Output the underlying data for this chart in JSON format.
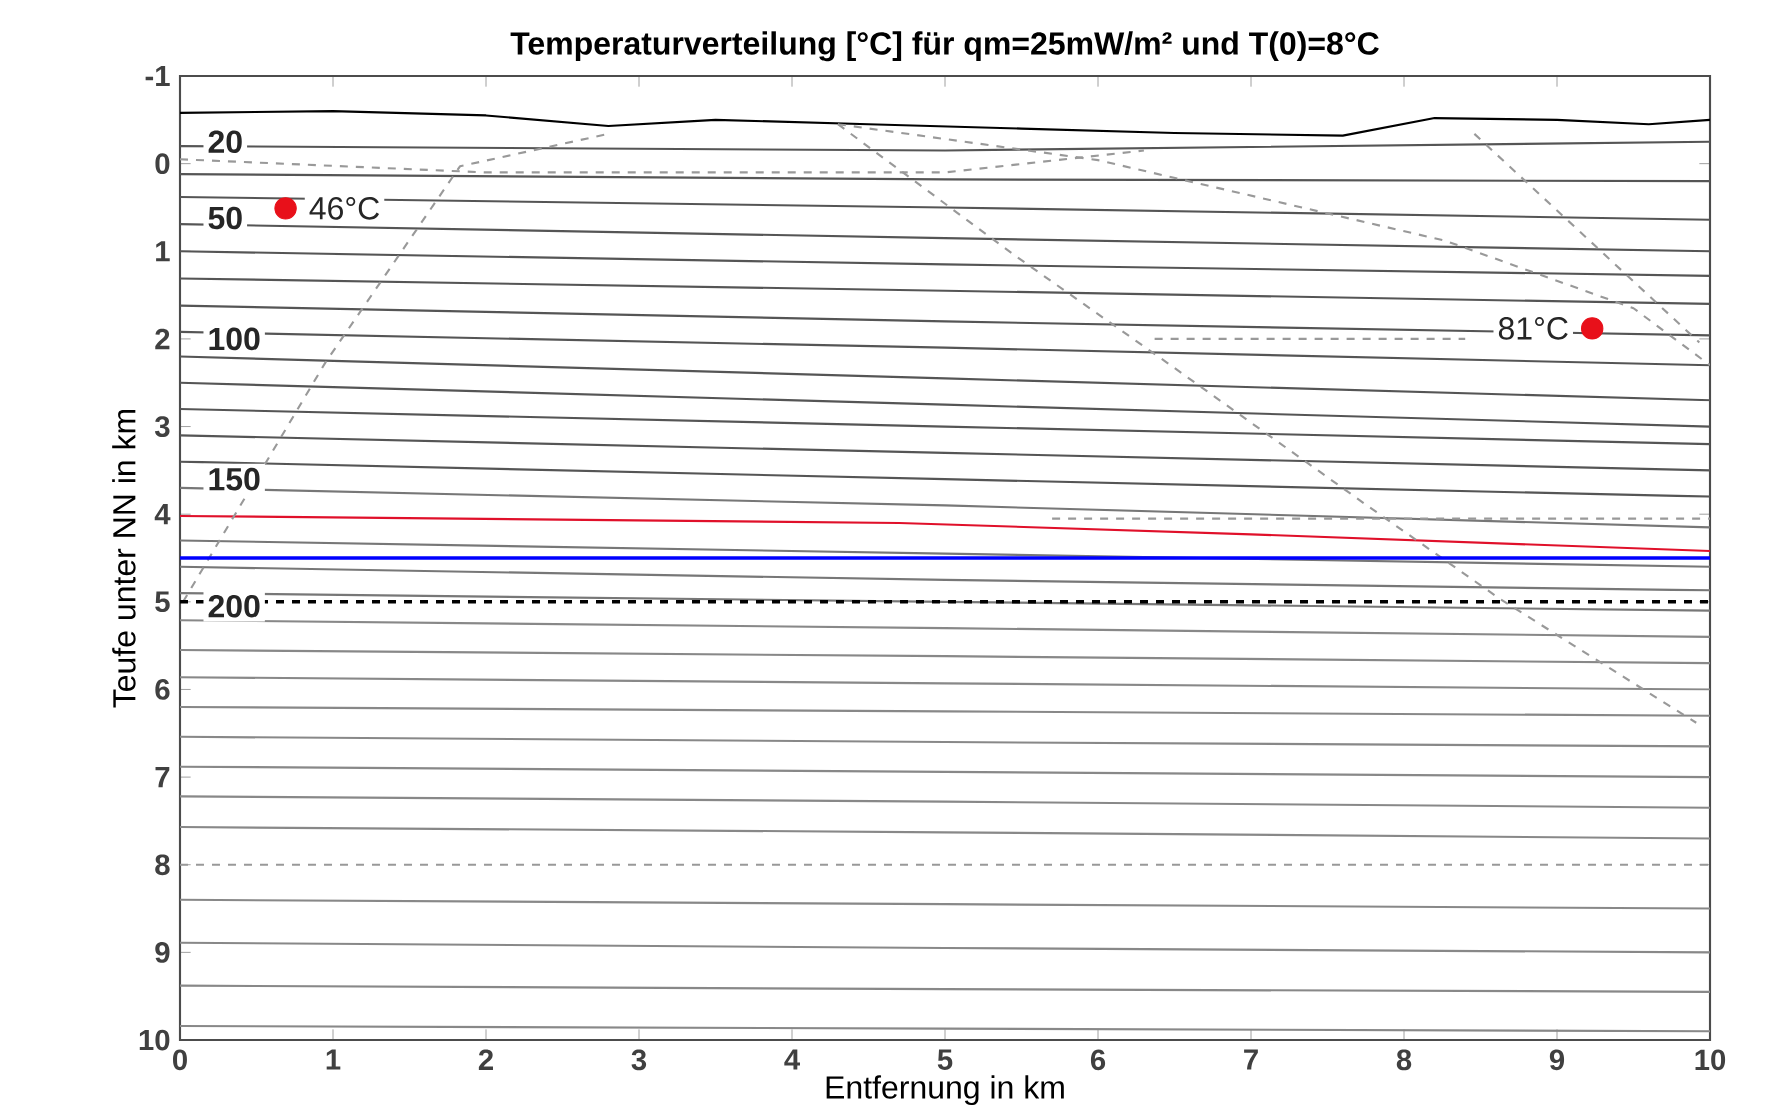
{
  "chart_data": {
    "type": "line",
    "title": "**Temperaturverteilung [°C] für qm=25mW/m² und T(0)=8°C**",
    "xlabel": "Entfernung in km",
    "ylabel": "Teufe unter NN in km",
    "xlim": [
      0,
      10
    ],
    "ylim": [
      10,
      -1
    ],
    "xticks": [
      0,
      1,
      2,
      3,
      4,
      5,
      6,
      7,
      8,
      9,
      10
    ],
    "yticks": [
      -1,
      0,
      1,
      2,
      3,
      4,
      5,
      6,
      7,
      8,
      9,
      10
    ],
    "x": [
      0,
      5,
      10
    ],
    "series": [
      {
        "color": "#000000",
        "x": [
          0,
          1,
          2,
          2.8,
          3.5,
          4.5,
          5.5,
          6.5,
          7.6,
          8.2,
          9,
          9.6,
          10
        ],
        "values": [
          -0.58,
          -0.6,
          -0.55,
          -0.43,
          -0.5,
          -0.45,
          -0.4,
          -0.35,
          -0.32,
          -0.52,
          -0.5,
          -0.45,
          -0.5
        ]
      },
      {
        "color": "#555555",
        "values": [
          -0.2,
          -0.15,
          -0.25
        ]
      },
      {
        "color": "#555555",
        "values": [
          0.12,
          0.18,
          0.2
        ]
      },
      {
        "color": "#555555",
        "values": [
          0.38,
          0.5,
          0.64
        ]
      },
      {
        "color": "#555555",
        "values": [
          0.69,
          0.85,
          1.0
        ]
      },
      {
        "color": "#555555",
        "values": [
          1.0,
          1.15,
          1.28
        ]
      },
      {
        "color": "#555555",
        "values": [
          1.31,
          1.45,
          1.6
        ]
      },
      {
        "color": "#555555",
        "values": [
          1.62,
          1.8,
          1.96
        ]
      },
      {
        "color": "#555555",
        "values": [
          1.92,
          2.1,
          2.3
        ]
      },
      {
        "color": "#555555",
        "values": [
          2.2,
          2.45,
          2.7
        ]
      },
      {
        "color": "#555555",
        "values": [
          2.5,
          2.75,
          3.0
        ]
      },
      {
        "color": "#555555",
        "values": [
          2.8,
          3.0,
          3.2
        ]
      },
      {
        "color": "#555555",
        "values": [
          3.1,
          3.3,
          3.5
        ]
      },
      {
        "color": "#555555",
        "values": [
          3.4,
          3.6,
          3.8
        ]
      },
      {
        "color": "#777777",
        "values": [
          3.7,
          3.9,
          4.15
        ]
      },
      {
        "color": "#777777",
        "values": [
          4.3,
          4.45,
          4.6
        ]
      },
      {
        "color": "#777777",
        "values": [
          4.6,
          4.75,
          4.87
        ]
      },
      {
        "color": "#777777",
        "values": [
          4.9,
          5.0,
          5.1
        ]
      },
      {
        "color": "#888888",
        "values": [
          5.21,
          5.3,
          5.4
        ]
      },
      {
        "color": "#888888",
        "values": [
          5.55,
          5.62,
          5.7
        ]
      },
      {
        "color": "#888888",
        "values": [
          5.86,
          5.93,
          6.0
        ]
      },
      {
        "color": "#888888",
        "values": [
          6.2,
          6.25,
          6.3
        ]
      },
      {
        "color": "#888888",
        "values": [
          6.54,
          6.6,
          6.65
        ]
      },
      {
        "color": "#888888",
        "values": [
          6.88,
          6.94,
          7.0
        ]
      },
      {
        "color": "#888888",
        "values": [
          7.22,
          7.28,
          7.35
        ]
      },
      {
        "color": "#888888",
        "values": [
          7.57,
          7.63,
          7.7
        ]
      },
      {
        "color": "#888888",
        "values": [
          8.4,
          8.45,
          8.5
        ]
      },
      {
        "color": "#888888",
        "values": [
          8.89,
          8.95,
          9.0
        ]
      },
      {
        "color": "#888888",
        "values": [
          9.38,
          9.42,
          9.45
        ]
      },
      {
        "color": "#888888",
        "values": [
          9.84,
          9.87,
          9.9
        ]
      },
      {
        "color": "#e0102a",
        "x": [
          0,
          4.7,
          7,
          10
        ],
        "values": [
          4.02,
          4.1,
          4.23,
          4.42
        ]
      },
      {
        "color": "#999999",
        "line_style": "dashed",
        "x": [
          0,
          10
        ],
        "values": [
          8.0,
          8.0
        ]
      },
      {
        "color": "#999999",
        "line_style": "dashed",
        "x": [
          0,
          2,
          5,
          6.3
        ],
        "values": [
          -0.05,
          0.1,
          0.1,
          -0.15
        ]
      },
      {
        "color": "#999999",
        "line_style": "dashed",
        "x": [
          6.37,
          8.4
        ],
        "values": [
          2.0,
          2.0
        ]
      },
      {
        "color": "#999999",
        "line_style": "dashed",
        "x": [
          5.7,
          10
        ],
        "values": [
          4.05,
          4.05
        ]
      },
      {
        "color": "#999999",
        "line_style": "dashed",
        "x": [
          0.02,
          0.95,
          1.83,
          2.8
        ],
        "values": [
          5.0,
          2.27,
          0.03,
          -0.34
        ]
      },
      {
        "color": "#999999",
        "line_style": "dashed",
        "x": [
          4.3,
          5.45,
          6.45,
          7.75,
          8.63,
          9.91
        ],
        "values": [
          -0.45,
          1.04,
          2.27,
          3.89,
          4.97,
          6.38
        ]
      },
      {
        "color": "#999999",
        "line_style": "dashed",
        "x": [
          4.3,
          6.0,
          8.27,
          9.5,
          10
        ],
        "values": [
          -0.45,
          -0.04,
          0.88,
          1.65,
          2.3
        ]
      },
      {
        "color": "#999999",
        "line_style": "dashed",
        "x": [
          8.46,
          9.93
        ],
        "values": [
          -0.34,
          2.04
        ]
      },
      {
        "type": "scatter",
        "marker": "circle",
        "color": "#e8101a",
        "x": [
          0.69,
          9.23
        ],
        "values": [
          0.51,
          1.88
        ]
      }
    ],
    "ref_lines": [
      {
        "axis": "y",
        "value": 4.5,
        "color": "#0000ff",
        "line_style": "solid"
      },
      {
        "axis": "y",
        "value": 5,
        "color": "#000000",
        "line_style": "dashed"
      }
    ],
    "annotations": [
      {
        "text": "**20**",
        "x": 0.15,
        "y": -0.25
      },
      {
        "text": "**50**",
        "x": 0.15,
        "y": 0.62
      },
      {
        "text": "**100**",
        "x": 0.15,
        "y": 2.0
      },
      {
        "text": "**150**",
        "x": 0.15,
        "y": 3.6
      },
      {
        "text": "**200**",
        "x": 0.15,
        "y": 5.05
      },
      {
        "text": "46°C",
        "x": 0.69,
        "y": 0.51
      },
      {
        "text": "81°C",
        "x": 9.23,
        "y": 1.88
      }
    ]
  }
}
